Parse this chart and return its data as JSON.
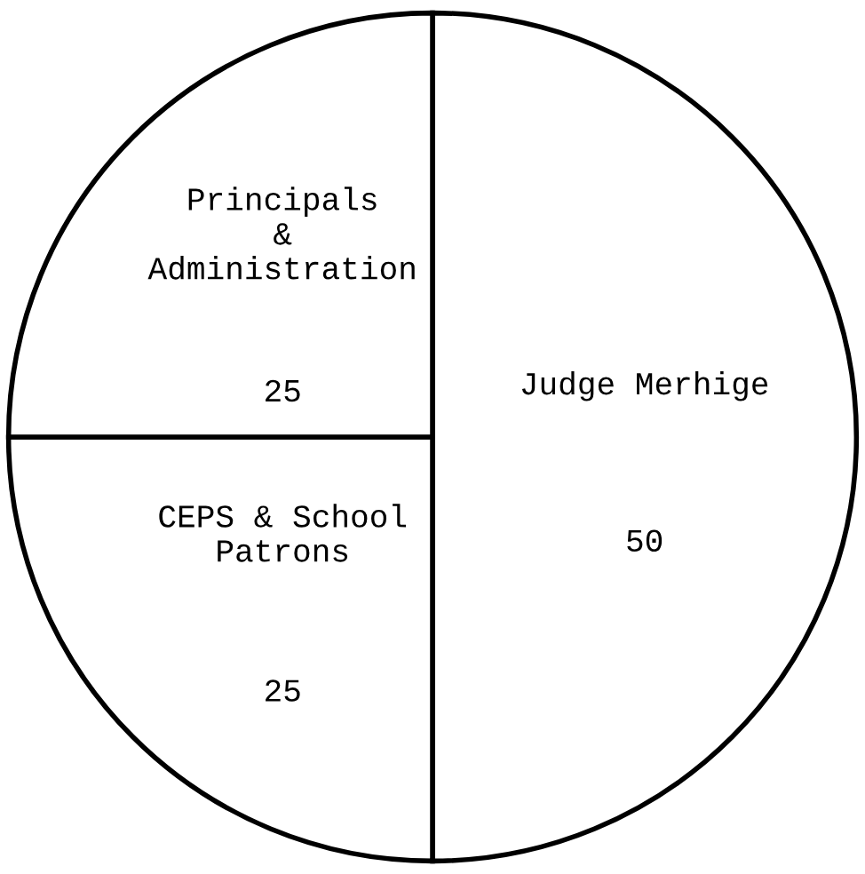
{
  "chart_data": {
    "type": "pie",
    "categories": [
      "Judge Merhige",
      "CEPS & School\nPatrons",
      "Principals\n&\nAdministration"
    ],
    "values": [
      50,
      25,
      25
    ],
    "colors": [
      "#ffffff",
      "#ffffff",
      "#ffffff"
    ],
    "data_labels": true
  }
}
